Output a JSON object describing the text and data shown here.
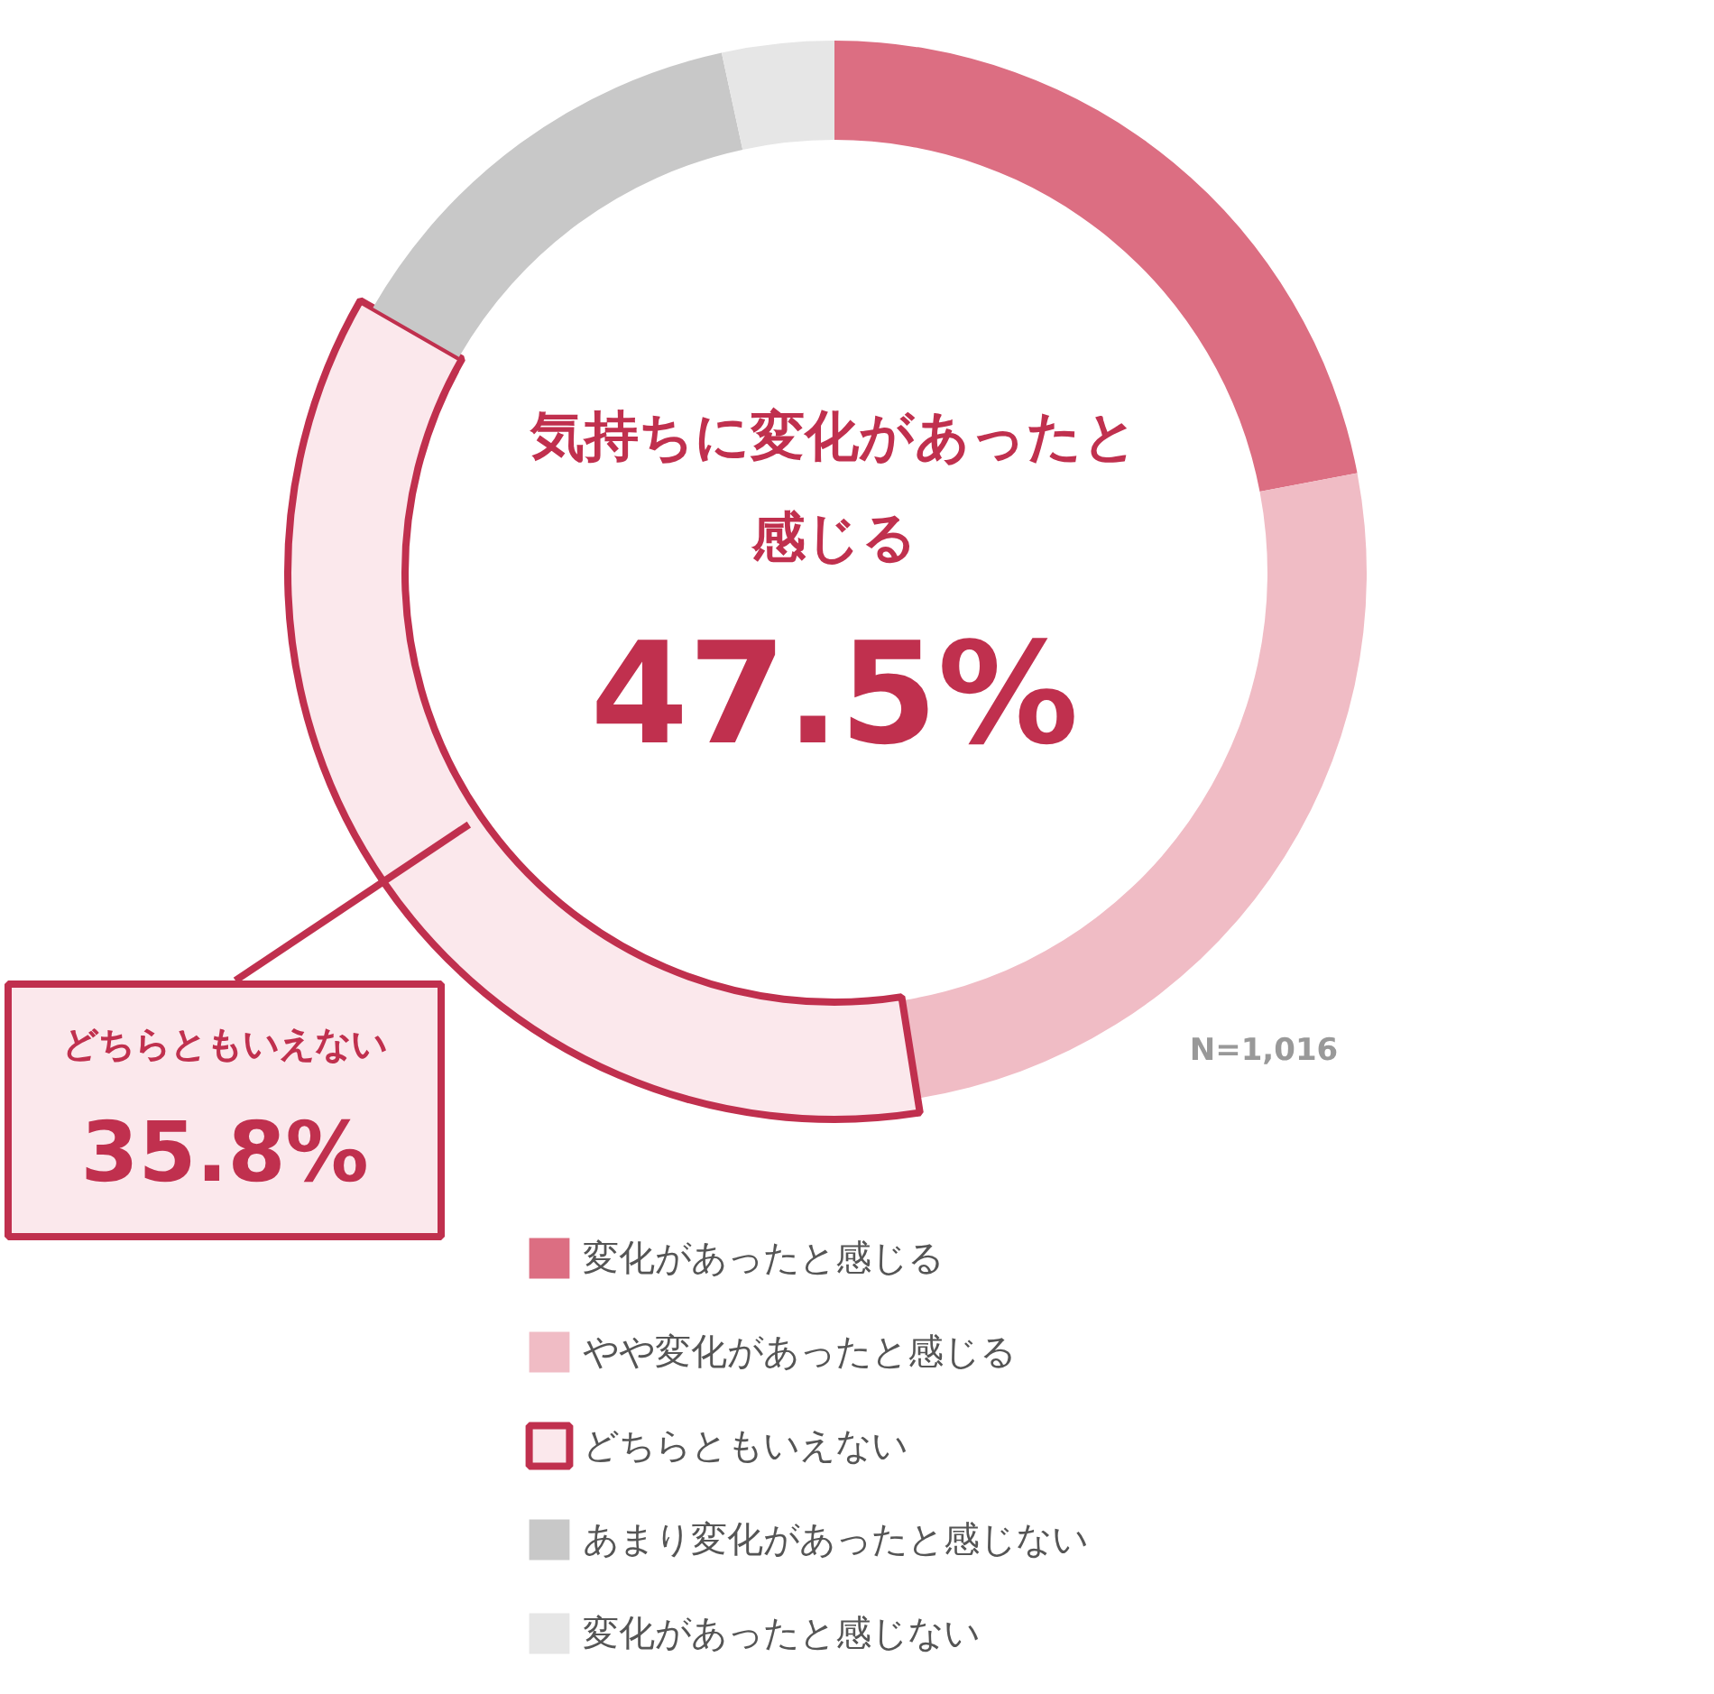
{
  "chart_data": {
    "type": "donut",
    "categories": [
      "変化があったと感じる",
      "やや変化があったと感じる",
      "どちらともいえない",
      "あまり変化があったと感じない",
      "変化があったと感じない"
    ],
    "values": [
      22.0,
      25.5,
      35.8,
      13.3,
      3.4
    ],
    "colors": [
      "#dc6e82",
      "#f0bcc5",
      "#fbe8ec",
      "#c8c8c8",
      "#e6e6e6"
    ],
    "legend": "bottom",
    "annotations": [
      "気持ちに変化があったと",
      "感じる",
      "47.5%",
      "どちらともいえない",
      "35.8%",
      "N=1,016"
    ]
  }
}
